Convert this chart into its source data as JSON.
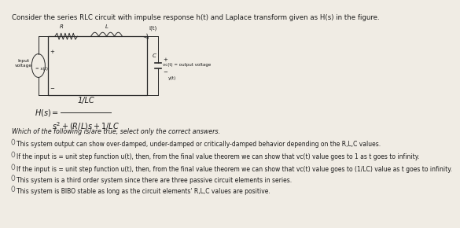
{
  "title_text": "Consider the series RLC circuit with impulse response h(t) and Laplace transform given as H(s) in the figure.",
  "question": "Which of the following is/are true, select only the correct answers.",
  "options": [
    "This system output can show over-damped, under-damped or critically-damped behavior depending on the R,L,C values.",
    "If the input is = unit step function u(t), then, from the final value theorem we can show that vc(t) value goes to 1 as t goes to infinity.",
    "If the input is = unit step function u(t), then, from the final value theorem we can show that vc(t) value goes to (1/LC) value as t goes to infinity.",
    "This system is a third order system since there are three passive circuit elements in series.",
    "This system is BIBO stable as long as the circuit elements' R,L,C values are positive."
  ],
  "bg_color": "#f0ece4",
  "text_color": "#1a1a1a",
  "circuit_color": "#2a2a2a",
  "font_title": 6.2,
  "font_body": 5.8,
  "font_small": 5.0,
  "font_eq": 7.0
}
